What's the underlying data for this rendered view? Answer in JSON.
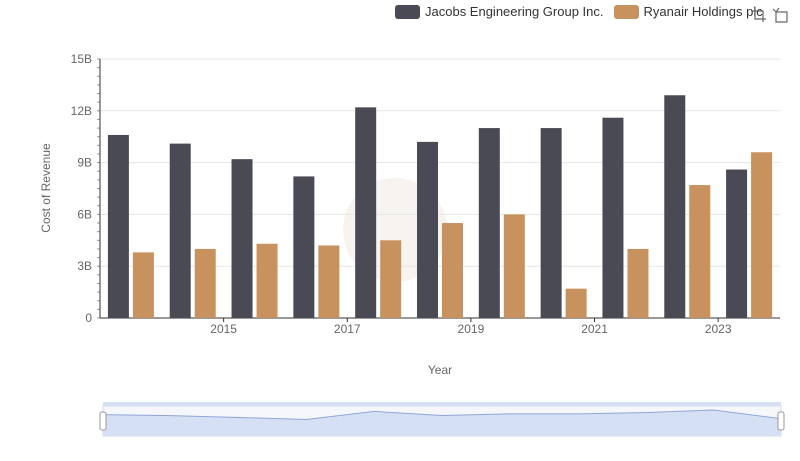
{
  "legend": {
    "items": [
      {
        "label": "Jacobs Engineering Group Inc.",
        "color": "#4a4a55"
      },
      {
        "label": "Ryanair Holdings plc",
        "color": "#c8925e"
      }
    ]
  },
  "toolbox": {
    "icons": [
      "zoom-icon",
      "restore-icon"
    ]
  },
  "chart_data": {
    "type": "bar",
    "xlabel": "Year",
    "ylabel": "Cost of Revenue",
    "categories": [
      "2014",
      "2015",
      "2016",
      "2017",
      "2018",
      "2019",
      "2020",
      "2021",
      "2022",
      "2023",
      "2024"
    ],
    "x_tick_labels": [
      "2015",
      "2017",
      "2019",
      "2021",
      "2023"
    ],
    "y_tick_labels": [
      "0",
      "3B",
      "6B",
      "9B",
      "12B",
      "15B"
    ],
    "ylim": [
      0,
      15000000000
    ],
    "grid": true,
    "legend_position": "top-right",
    "series": [
      {
        "name": "Jacobs Engineering Group Inc.",
        "color": "#4a4a55",
        "values": [
          10600000000,
          10100000000,
          9200000000,
          8200000000,
          12200000000,
          10200000000,
          11000000000,
          11000000000,
          11600000000,
          12900000000,
          8600000000
        ]
      },
      {
        "name": "Ryanair Holdings plc",
        "color": "#c8925e",
        "values": [
          3800000000,
          4000000000,
          4300000000,
          4200000000,
          4500000000,
          5500000000,
          6000000000,
          1700000000,
          4000000000,
          7700000000,
          9600000000
        ]
      }
    ]
  }
}
